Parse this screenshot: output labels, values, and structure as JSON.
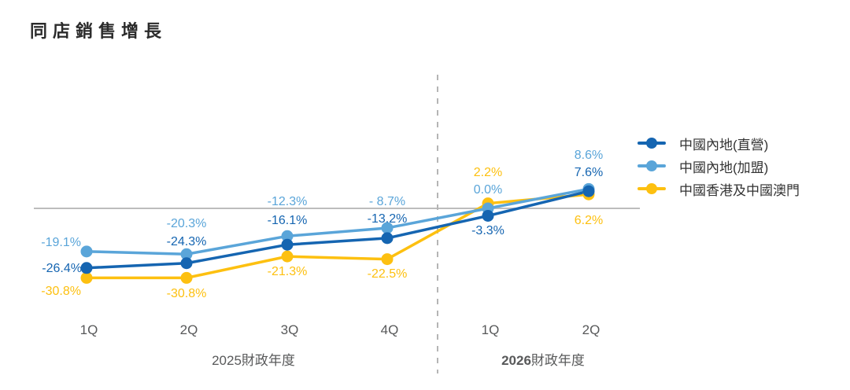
{
  "title": "同店銷售增長",
  "colors": {
    "direct_blue": "#1565b1",
    "franchise_blue": "#5aa5d9",
    "hkmo_yellow": "#fdc010",
    "zero_line": "#bdbdbd",
    "divider": "#b5b5b5",
    "axis_text": "#58595a",
    "title_text": "#2b2b2b"
  },
  "legend": {
    "items": [
      {
        "label": "中國內地(直營)",
        "color": "#1565b1"
      },
      {
        "label": "中國內地(加盟)",
        "color": "#5aa5d9"
      },
      {
        "label": "中國香港及中國澳門",
        "color": "#fdc010"
      }
    ]
  },
  "chart_data": {
    "type": "line",
    "title": "同店銷售增長",
    "categories": [
      "1Q",
      "2Q",
      "3Q",
      "4Q",
      "1Q",
      "2Q"
    ],
    "series": [
      {
        "name": "中國內地(直營)",
        "color": "#1565b1",
        "values": [
          -26.4,
          -24.3,
          -16.1,
          -13.2,
          -3.3,
          7.6
        ],
        "labels": [
          "-26.4%",
          "-24.3%",
          "-16.1%",
          "-13.2%",
          "-3.3%",
          "7.6%"
        ]
      },
      {
        "name": "中國內地(加盟)",
        "color": "#5aa5d9",
        "values": [
          -19.1,
          -20.3,
          -12.3,
          -8.7,
          0.0,
          8.6
        ],
        "labels": [
          "-19.1%",
          "-20.3%",
          "-12.3%",
          "- 8.7%",
          "0.0%",
          "8.6%"
        ]
      },
      {
        "name": "中國香港及中國澳門",
        "color": "#fdc010",
        "values": [
          -30.8,
          -30.8,
          -21.3,
          -22.5,
          2.2,
          6.2
        ],
        "labels": [
          "-30.8%",
          "-30.8%",
          "-21.3%",
          "-22.5%",
          "2.2%",
          "6.2%"
        ]
      }
    ],
    "fiscal_years": [
      {
        "year": "2025",
        "suffix": "財政年度",
        "bold": false
      },
      {
        "year": "2026",
        "suffix": "財政年度",
        "bold": true
      }
    ],
    "baseline_value": 0,
    "ylim": [
      -35,
      12
    ],
    "grid": false,
    "legend_position": "right",
    "divider_after_category_index": 3
  }
}
